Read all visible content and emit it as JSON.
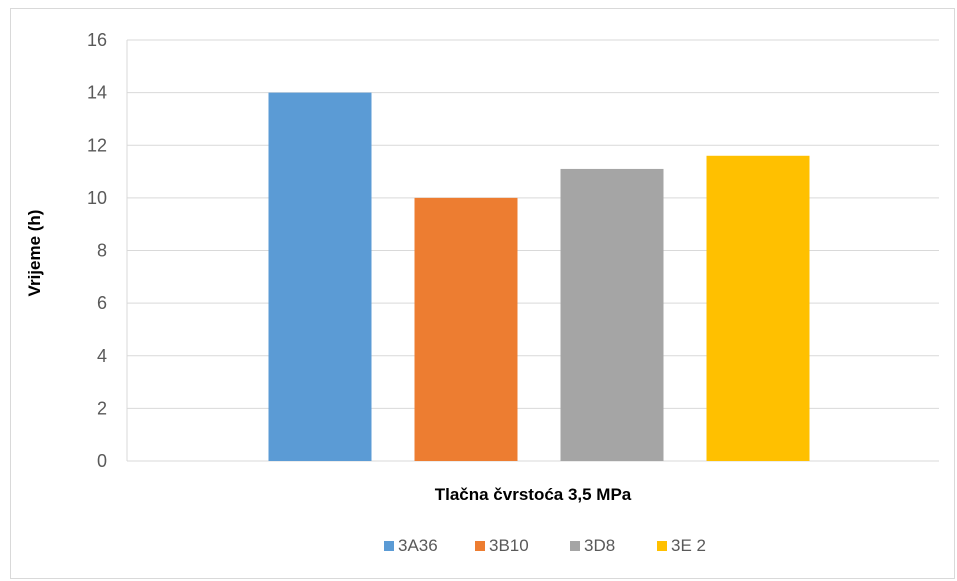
{
  "chart_data": {
    "type": "bar",
    "categories": [
      "Tlačna čvrstoća 3,5 MPa"
    ],
    "xlabel": "Tlačna čvrstoća 3,5 MPa",
    "ylabel": "Vrijeme (h)",
    "ylim": [
      0,
      16
    ],
    "yticks": [
      0,
      2,
      4,
      6,
      8,
      10,
      12,
      14,
      16
    ],
    "grid": true,
    "legend_position": "bottom",
    "series": [
      {
        "name": "3A36",
        "values": [
          14.0
        ],
        "color": "#5b9bd5"
      },
      {
        "name": "3B10",
        "values": [
          10.0
        ],
        "color": "#ed7d31"
      },
      {
        "name": "3D8",
        "values": [
          11.1
        ],
        "color": "#a5a5a5"
      },
      {
        "name": "3E 2",
        "values": [
          11.6
        ],
        "color": "#ffc000"
      }
    ]
  }
}
